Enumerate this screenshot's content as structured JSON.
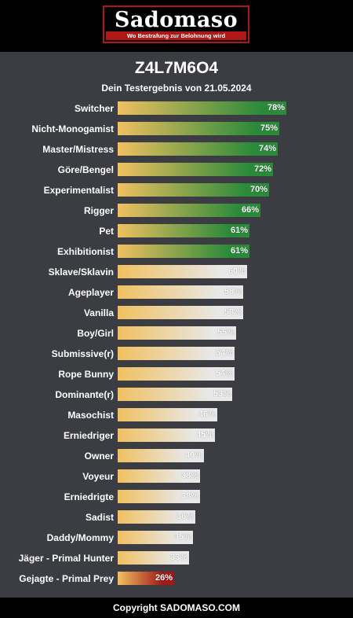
{
  "brand": {
    "logo_text": "Sadomaso",
    "tagline": "Wo Bestrafung zur Belohnung wird"
  },
  "title": "Z4L7M6O4",
  "subtitle": "Dein Testergebnis von 21.05.2024",
  "footer": "Copyright SADOMASO.COM",
  "colors": {
    "background": "#3b3d42",
    "green_end": "#2a8a3a",
    "light_end": "#e8e8e8",
    "red_end": "#a01818",
    "gold_start": "#f0c060"
  },
  "chart_data": {
    "type": "bar",
    "orientation": "horizontal",
    "xlim": [
      0,
      100
    ],
    "categories": [
      "Switcher",
      "Nicht-Monogamist",
      "Master/Mistress",
      "Göre/Bengel",
      "Experimentalist",
      "Rigger",
      "Pet",
      "Exhibitionist",
      "Sklave/Sklavin",
      "Ageplayer",
      "Vanilla",
      "Boy/Girl",
      "Submissive(r)",
      "Rope Bunny",
      "Dominante(r)",
      "Masochist",
      "Erniedriger",
      "Owner",
      "Voyeur",
      "Erniedrigte",
      "Sadist",
      "Daddy/Mommy",
      "Jäger - Primal Hunter",
      "Gejagte - Primal Prey"
    ],
    "values": [
      78,
      75,
      74,
      72,
      70,
      66,
      61,
      61,
      60,
      58,
      58,
      55,
      54,
      54,
      53,
      46,
      45,
      40,
      38,
      38,
      36,
      35,
      33,
      26
    ],
    "value_labels": [
      "78%",
      "75%",
      "74%",
      "72%",
      "70%",
      "66%",
      "61%",
      "61%",
      "60%",
      "58%",
      "58%",
      "55%",
      "54%",
      "54%",
      "53%",
      "46%",
      "45%",
      "40%",
      "38%",
      "38%",
      "36%",
      "35%",
      "33%",
      "26%"
    ],
    "bar_style": [
      "green",
      "green",
      "green",
      "green",
      "green",
      "green",
      "green",
      "green",
      "light",
      "light",
      "light",
      "light",
      "light",
      "light",
      "light",
      "light",
      "light",
      "light",
      "light",
      "light",
      "light",
      "light",
      "light",
      "red"
    ]
  }
}
